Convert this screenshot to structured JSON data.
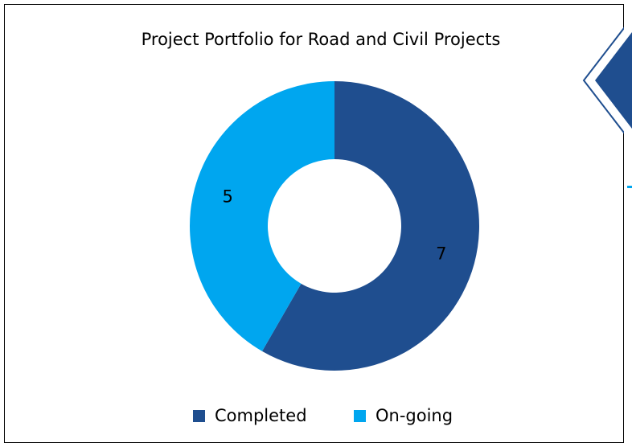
{
  "chart_data": {
    "type": "donut",
    "title": "Project Portfolio for Road and Civil Projects",
    "categories": [
      "Completed",
      "On-going"
    ],
    "values": [
      7,
      5
    ],
    "colors": [
      "#1f4e8f",
      "#00a6ef"
    ],
    "legend": "bottom"
  }
}
